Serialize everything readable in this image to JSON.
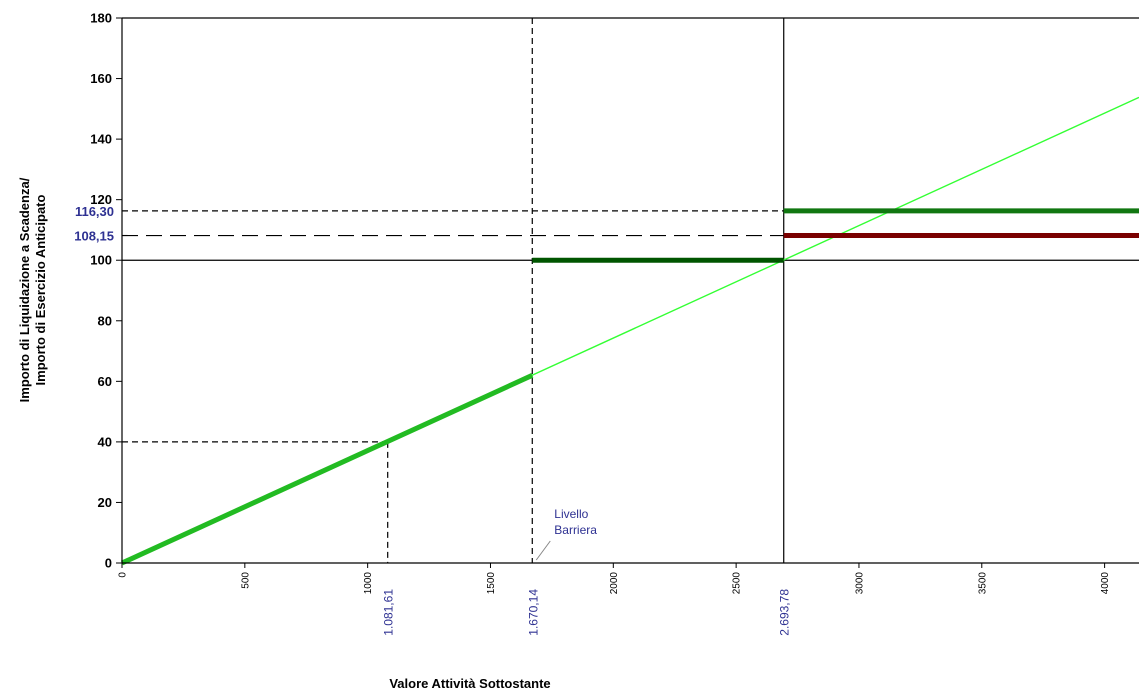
{
  "chart_data": {
    "type": "line",
    "title": "",
    "xlabel": "Valore Attività Sottostante",
    "ylabel_line1": "Importo di Liquidazione a Scadenza/",
    "ylabel_line2": "Importo di Esercizio Anticipato",
    "xlim": [
      0,
      4140
    ],
    "ylim": [
      0,
      180
    ],
    "grid": false,
    "x_ticks": [
      0,
      500,
      1000,
      1500,
      2000,
      2500,
      3000,
      3500,
      4000
    ],
    "x_tick_labels": [
      "0",
      "500",
      "1000",
      "1500",
      "2000",
      "2500",
      "3000",
      "3500",
      "4000"
    ],
    "y_ticks": [
      0,
      20,
      40,
      60,
      80,
      100,
      120,
      140,
      160,
      180
    ],
    "y_tick_labels": [
      "0",
      "20",
      "40",
      "60",
      "80",
      "100",
      "120",
      "140",
      "160",
      "180"
    ],
    "series": [
      {
        "kind": "thin-line",
        "color": "#33ff33",
        "x": [
          0,
          4140
        ],
        "y": [
          0,
          153.76
        ]
      },
      {
        "kind": "thick-line",
        "color": "#22bb22",
        "x": [
          0,
          1670.14
        ],
        "y": [
          0,
          62.0
        ]
      },
      {
        "kind": "thick-line",
        "color": "#005500",
        "x": [
          1670.14,
          2693.78
        ],
        "y": [
          100,
          100
        ]
      },
      {
        "kind": "thick-line",
        "color": "#117711",
        "x": [
          2693.78,
          4140
        ],
        "y": [
          116.3,
          116.3
        ]
      },
      {
        "kind": "thick-line",
        "color": "#7a0000",
        "x": [
          2693.78,
          4140
        ],
        "y": [
          108.15,
          108.15
        ]
      }
    ],
    "reference_lines": [
      {
        "orientation": "vertical",
        "x": 1081.61,
        "y_to": 40,
        "style": "short-dash"
      },
      {
        "orientation": "horizontal",
        "y": 40,
        "x_to": 1081.61,
        "style": "short-dash"
      },
      {
        "orientation": "vertical",
        "x": 1670.14,
        "style": "short-dash"
      },
      {
        "orientation": "vertical",
        "x": 2693.78,
        "style": "solid"
      },
      {
        "orientation": "horizontal",
        "y": 100,
        "style": "solid"
      },
      {
        "orientation": "horizontal",
        "y": 116.3,
        "x_to": 2693.78,
        "style": "short-dash"
      },
      {
        "orientation": "horizontal",
        "y": 108.15,
        "x_to": 2693.78,
        "style": "long-dash"
      }
    ],
    "y_annotations": [
      {
        "value": 116.3,
        "label": "116,30"
      },
      {
        "value": 108.15,
        "label": "108,15"
      }
    ],
    "x_annotations": [
      {
        "value": 1081.61,
        "label": "1.081,61"
      },
      {
        "value": 1670.14,
        "label": "1.670,14"
      },
      {
        "value": 2693.78,
        "label": "2.693,78"
      }
    ],
    "barrier_label": {
      "line1": "Livello",
      "line2": "Barriera",
      "x": 1670.14
    },
    "colors": {
      "axis": "#000000",
      "annotation": "#2e3192"
    }
  }
}
